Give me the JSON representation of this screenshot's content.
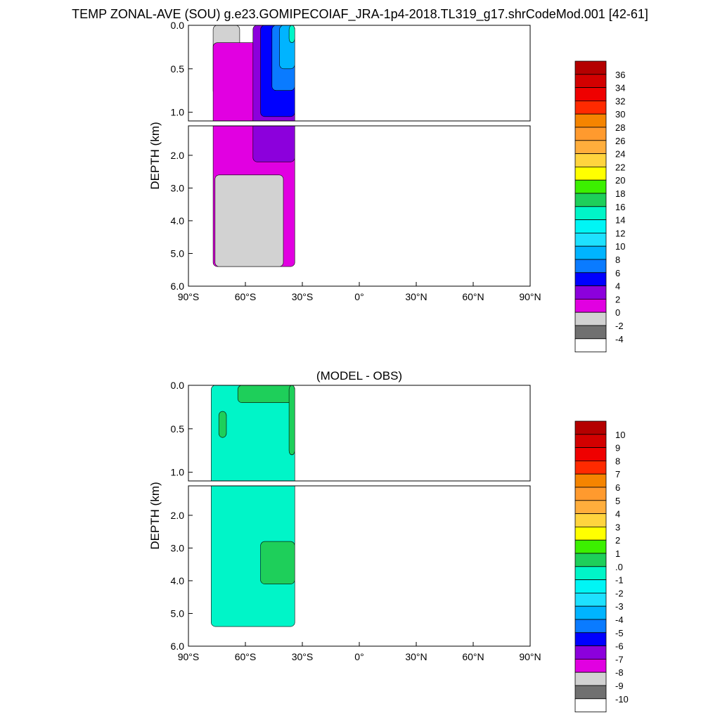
{
  "page": {
    "title": "TEMP ZONAL-AVE (SOU) g.e23.GOMIPECOIAF_JRA-1p4-2018.TL319_g17.shrCodeMod.001 [42-61]"
  },
  "chart_data": [
    {
      "type": "heatmap",
      "panel": "top",
      "title": "",
      "ylabel": "DEPTH (km)",
      "xlabel": "",
      "x_ticks": [
        "90°S",
        "60°S",
        "30°S",
        "0°",
        "30°N",
        "60°N",
        "90°N"
      ],
      "xlim": [
        -90,
        90
      ],
      "y_ticks_upper": [
        "0.0",
        "0.5",
        "1.0"
      ],
      "y_ticks_lower": [
        "2.0",
        "3.0",
        "4.0",
        "5.0",
        "6.0"
      ],
      "ylim_upper_km": [
        0,
        1.1
      ],
      "ylim_lower_km": [
        1.1,
        6.0
      ],
      "grid": false,
      "colorbar": {
        "labels": [
          "36",
          "34",
          "32",
          "30",
          "28",
          "26",
          "24",
          "22",
          "20",
          "18",
          "16",
          "14",
          "12",
          "10",
          "8",
          "6",
          "4",
          "2",
          "0",
          "-2",
          "-4"
        ],
        "colors": [
          "#b40000",
          "#d20000",
          "#ef0000",
          "#ff2a00",
          "#f58400",
          "#ff9a2e",
          "#ffae3c",
          "#ffd43e",
          "#ffff00",
          "#3cf000",
          "#1ecf5a",
          "#00f5c8",
          "#00f5f5",
          "#1ee1ff",
          "#00b4ff",
          "#0a7bff",
          "#0000ff",
          "#8c00dc",
          "#e100e1",
          "#d2d2d2",
          "#707070",
          "#ffffff"
        ]
      },
      "regions": [
        {
          "value_range": "< 0",
          "color": "#d2d2d2",
          "lat_extent": [
            -77,
            -63
          ],
          "depth_km": [
            0,
            0.8
          ]
        },
        {
          "value_range": "0-2",
          "color": "#e100e1",
          "lat_extent": [
            -77,
            -34
          ],
          "depth_km": [
            0.2,
            5.4
          ]
        },
        {
          "value_range": "< 0",
          "color": "#d2d2d2",
          "lat_extent": [
            -76,
            -40
          ],
          "depth_km": [
            2.6,
            5.4
          ]
        },
        {
          "value_range": "2-4",
          "color": "#8c00dc",
          "lat_extent": [
            -56,
            -34
          ],
          "depth_km": [
            0,
            2.2
          ]
        },
        {
          "value_range": "4-6",
          "color": "#0000ff",
          "lat_extent": [
            -52,
            -34
          ],
          "depth_km": [
            0,
            1.05
          ]
        },
        {
          "value_range": "6-8",
          "color": "#0a7bff",
          "lat_extent": [
            -46,
            -34
          ],
          "depth_km": [
            0,
            0.75
          ]
        },
        {
          "value_range": "8-12",
          "color": "#00b4ff",
          "lat_extent": [
            -42,
            -34
          ],
          "depth_km": [
            0,
            0.5
          ]
        },
        {
          "value_range": "12-18",
          "color": "#00f5c8",
          "lat_extent": [
            -37,
            -34
          ],
          "depth_km": [
            0,
            0.2
          ]
        }
      ]
    },
    {
      "type": "heatmap",
      "panel": "bottom",
      "title": "(MODEL - OBS)",
      "ylabel": "DEPTH (km)",
      "xlabel": "",
      "x_ticks": [
        "90°S",
        "60°S",
        "30°S",
        "0°",
        "30°N",
        "60°N",
        "90°N"
      ],
      "xlim": [
        -90,
        90
      ],
      "y_ticks_upper": [
        "0.0",
        "0.5",
        "1.0"
      ],
      "y_ticks_lower": [
        "2.0",
        "3.0",
        "4.0",
        "5.0",
        "6.0"
      ],
      "ylim_upper_km": [
        0,
        1.1
      ],
      "ylim_lower_km": [
        1.1,
        6.0
      ],
      "grid": false,
      "colorbar": {
        "labels": [
          "10",
          "9",
          "8",
          "7",
          "6",
          "5",
          "4",
          "3",
          "2",
          "1",
          ".0",
          "-1",
          "-2",
          "-3",
          "-4",
          "-5",
          "-6",
          "-7",
          "-8",
          "-9",
          "-10"
        ],
        "colors": [
          "#b40000",
          "#d20000",
          "#ef0000",
          "#ff2a00",
          "#f58400",
          "#ff9a2e",
          "#ffae3c",
          "#ffd43e",
          "#ffff00",
          "#3cf000",
          "#1ecf5a",
          "#00f5c8",
          "#00f5f5",
          "#1ee1ff",
          "#00b4ff",
          "#0a7bff",
          "#0000ff",
          "#8c00dc",
          "#e100e1",
          "#d2d2d2",
          "#707070",
          "#ffffff"
        ]
      },
      "regions": [
        {
          "value_range": "-1 to 0",
          "color": "#00f5c8",
          "lat_extent": [
            -78,
            -34
          ],
          "depth_km": [
            0,
            5.4
          ]
        },
        {
          "value_range": "0 to 1",
          "color": "#1ecf5a",
          "lat_extent": [
            -64,
            -34
          ],
          "depth_km": [
            0,
            0.2
          ]
        },
        {
          "value_range": "0 to 1",
          "color": "#1ecf5a",
          "lat_extent": [
            -74,
            -70
          ],
          "depth_km": [
            0.3,
            0.6
          ]
        },
        {
          "value_range": "0 to 1",
          "color": "#1ecf5a",
          "lat_extent": [
            -37,
            -34
          ],
          "depth_km": [
            0,
            0.8
          ]
        },
        {
          "value_range": "0 to 1",
          "color": "#1ecf5a",
          "lat_extent": [
            -52,
            -34
          ],
          "depth_km": [
            2.8,
            4.1
          ]
        }
      ]
    }
  ]
}
